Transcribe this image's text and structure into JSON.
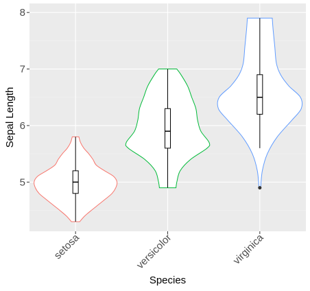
{
  "chart_data": {
    "type": "violin",
    "xlabel": "Species",
    "ylabel": "Sepal Length",
    "categories": [
      "setosa",
      "versicolor",
      "virginica"
    ],
    "ylim": [
      4.13,
      8.16
    ],
    "yticks": [
      5,
      6,
      7,
      8
    ],
    "ytick_labels": [
      "5",
      "6",
      "7",
      "8"
    ],
    "grid": true,
    "xtick_rotation": 45,
    "violins": [
      {
        "category": "setosa",
        "color": "#F8766D",
        "min": 4.3,
        "q1": 4.8,
        "median": 5.0,
        "q3": 5.2,
        "max": 5.8,
        "whisker_low": 4.3,
        "whisker_high": 5.8,
        "outliers": [],
        "density": [
          [
            4.3,
            0.1
          ],
          [
            4.4,
            0.22
          ],
          [
            4.5,
            0.38
          ],
          [
            4.6,
            0.55
          ],
          [
            4.7,
            0.72
          ],
          [
            4.8,
            0.88
          ],
          [
            4.9,
            0.97
          ],
          [
            5.0,
            1.0
          ],
          [
            5.1,
            0.92
          ],
          [
            5.2,
            0.7
          ],
          [
            5.3,
            0.5
          ],
          [
            5.4,
            0.42
          ],
          [
            5.5,
            0.32
          ],
          [
            5.6,
            0.2
          ],
          [
            5.7,
            0.12
          ],
          [
            5.8,
            0.08
          ]
        ]
      },
      {
        "category": "versicolor",
        "color": "#00BA38",
        "min": 4.9,
        "q1": 5.6,
        "median": 5.9,
        "q3": 6.3,
        "max": 7.0,
        "whisker_low": 4.9,
        "whisker_high": 7.0,
        "outliers": [],
        "density": [
          [
            4.9,
            0.2
          ],
          [
            5.0,
            0.22
          ],
          [
            5.2,
            0.3
          ],
          [
            5.4,
            0.55
          ],
          [
            5.6,
            0.95
          ],
          [
            5.7,
            1.0
          ],
          [
            5.9,
            0.8
          ],
          [
            6.1,
            0.72
          ],
          [
            6.3,
            0.68
          ],
          [
            6.5,
            0.58
          ],
          [
            6.7,
            0.48
          ],
          [
            6.9,
            0.32
          ],
          [
            7.0,
            0.22
          ]
        ]
      },
      {
        "category": "virginica",
        "color": "#619CFF",
        "min": 4.9,
        "q1": 6.2,
        "median": 6.5,
        "q3": 6.9,
        "max": 7.9,
        "whisker_low": 5.6,
        "whisker_high": 7.9,
        "outliers": [
          4.9
        ],
        "density": [
          [
            4.9,
            0.02
          ],
          [
            5.2,
            0.06
          ],
          [
            5.5,
            0.18
          ],
          [
            5.8,
            0.42
          ],
          [
            6.1,
            0.78
          ],
          [
            6.3,
            1.0
          ],
          [
            6.5,
            0.98
          ],
          [
            6.7,
            0.7
          ],
          [
            6.9,
            0.5
          ],
          [
            7.1,
            0.4
          ],
          [
            7.4,
            0.36
          ],
          [
            7.7,
            0.32
          ],
          [
            7.9,
            0.3
          ]
        ]
      }
    ]
  }
}
